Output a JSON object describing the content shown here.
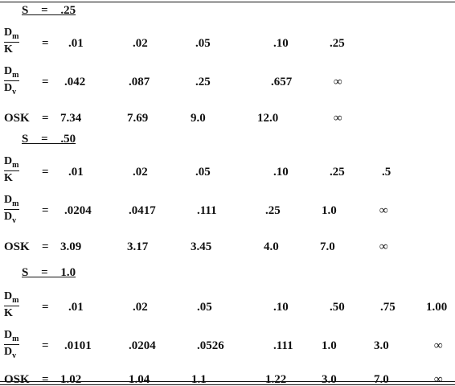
{
  "sections": [
    {
      "heading": "S = .25",
      "rows": [
        {
          "label": {
            "numerator": {
              "base": "D",
              "sub": "m"
            },
            "denominator": {
              "base": "K"
            }
          },
          "eq": "=",
          "values": [
            ".01",
            ".02",
            ".05",
            ".10",
            ".25"
          ]
        },
        {
          "label": {
            "numerator": {
              "base": "D",
              "sub": "m"
            },
            "denominator": {
              "base": "D",
              "sub": "v"
            }
          },
          "eq": "=",
          "values": [
            ".042",
            ".087",
            ".25",
            ".657",
            "∞"
          ]
        },
        {
          "label": {
            "text": "OSK"
          },
          "eq": "=",
          "values": [
            "7.34",
            "7.69",
            "9.0",
            "12.0",
            "∞"
          ]
        }
      ]
    },
    {
      "heading": "S = .50",
      "rows": [
        {
          "label": {
            "numerator": {
              "base": "D",
              "sub": "m"
            },
            "denominator": {
              "base": "K"
            }
          },
          "eq": "=",
          "values": [
            ".01",
            ".02",
            ".05",
            ".10",
            ".25",
            ".5"
          ]
        },
        {
          "label": {
            "numerator": {
              "base": "D",
              "sub": "m"
            },
            "denominator": {
              "base": "D",
              "sub": "v"
            }
          },
          "eq": "=",
          "values": [
            ".0204",
            ".0417",
            ".111",
            ".25",
            "1.0",
            "∞"
          ]
        },
        {
          "label": {
            "text": "OSK"
          },
          "eq": "=",
          "values": [
            "3.09",
            "3.17",
            "3.45",
            "4.0",
            "7.0",
            "∞"
          ]
        }
      ]
    },
    {
      "heading": "S = 1.0",
      "rows": [
        {
          "label": {
            "numerator": {
              "base": "D",
              "sub": "m"
            },
            "denominator": {
              "base": "K"
            }
          },
          "eq": "=",
          "values": [
            ".01",
            ".02",
            ".05",
            ".10",
            ".50",
            ".75",
            "1.00"
          ]
        },
        {
          "label": {
            "numerator": {
              "base": "D",
              "sub": "m"
            },
            "denominator": {
              "base": "D",
              "sub": "v"
            }
          },
          "eq": "=",
          "values": [
            ".0101",
            ".0204",
            ".0526",
            ".111",
            "1.0",
            "3.0",
            "∞"
          ]
        },
        {
          "label": {
            "text": "OSK"
          },
          "eq": "=",
          "values": [
            "1.02",
            "1.04",
            "1.1",
            "1.22",
            "3.0",
            "7.0",
            "∞"
          ]
        }
      ]
    }
  ]
}
